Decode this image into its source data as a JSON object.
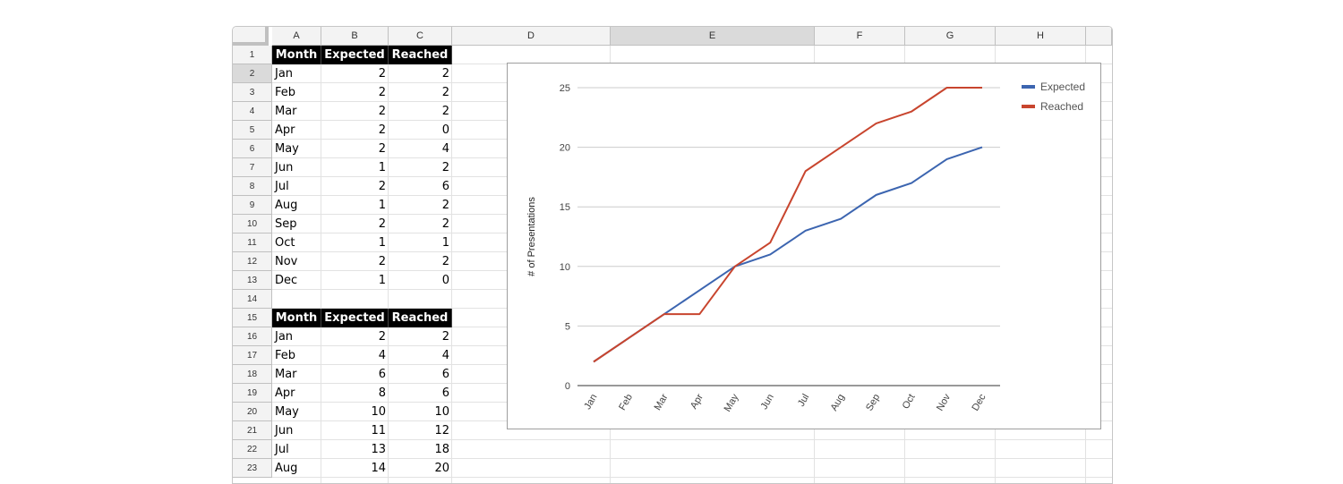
{
  "sheet": {
    "columns": [
      "A",
      "B",
      "C",
      "D",
      "E",
      "F",
      "G",
      "H"
    ],
    "selected_column": "E",
    "rows": [
      "1",
      "2",
      "3",
      "4",
      "5",
      "6",
      "7",
      "8",
      "9",
      "10",
      "11",
      "12",
      "13",
      "14",
      "15",
      "16",
      "17",
      "18",
      "19",
      "20",
      "21",
      "22",
      "23"
    ],
    "selected_row": "2"
  },
  "table1": {
    "headers": [
      "Month",
      "Expected",
      "Reached"
    ],
    "rows": [
      [
        "Jan",
        "2",
        "2"
      ],
      [
        "Feb",
        "2",
        "2"
      ],
      [
        "Mar",
        "2",
        "2"
      ],
      [
        "Apr",
        "2",
        "0"
      ],
      [
        "May",
        "2",
        "4"
      ],
      [
        "Jun",
        "1",
        "2"
      ],
      [
        "Jul",
        "2",
        "6"
      ],
      [
        "Aug",
        "1",
        "2"
      ],
      [
        "Sep",
        "2",
        "2"
      ],
      [
        "Oct",
        "1",
        "1"
      ],
      [
        "Nov",
        "2",
        "2"
      ],
      [
        "Dec",
        "1",
        "0"
      ]
    ]
  },
  "table2": {
    "headers": [
      "Month",
      "Expected",
      "Reached"
    ],
    "rows": [
      [
        "Jan",
        "2",
        "2"
      ],
      [
        "Feb",
        "4",
        "4"
      ],
      [
        "Mar",
        "6",
        "6"
      ],
      [
        "Apr",
        "8",
        "6"
      ],
      [
        "May",
        "10",
        "10"
      ],
      [
        "Jun",
        "11",
        "12"
      ],
      [
        "Jul",
        "13",
        "18"
      ],
      [
        "Aug",
        "14",
        "20"
      ]
    ]
  },
  "chart_data": {
    "type": "line",
    "categories": [
      "Jan",
      "Feb",
      "Mar",
      "Apr",
      "May",
      "Jun",
      "Jul",
      "Aug",
      "Sep",
      "Oct",
      "Nov",
      "Dec"
    ],
    "series": [
      {
        "name": "Expected",
        "color": "#3c65b0",
        "values": [
          2,
          4,
          6,
          8,
          10,
          11,
          13,
          14,
          16,
          17,
          19,
          20
        ]
      },
      {
        "name": "Reached",
        "color": "#c8452e",
        "values": [
          2,
          4,
          6,
          6,
          10,
          12,
          18,
          20,
          22,
          23,
          25,
          25
        ]
      }
    ],
    "ylabel": "# of Presentations",
    "yticks": [
      "0",
      "5",
      "10",
      "15",
      "20",
      "25"
    ],
    "ylim": [
      0,
      25
    ],
    "grid": true,
    "legend_position": "right"
  }
}
